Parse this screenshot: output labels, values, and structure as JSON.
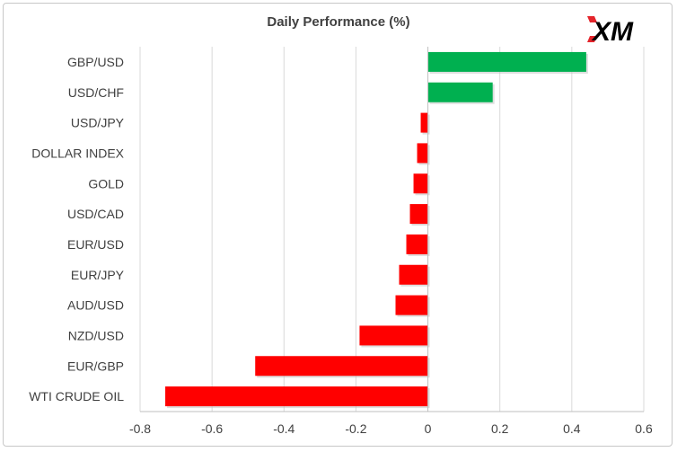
{
  "chart_data": {
    "type": "bar",
    "orientation": "horizontal",
    "title": "Daily Performance (%)",
    "xlabel": "",
    "ylabel": "",
    "categories": [
      "GBP/USD",
      "USD/CHF",
      "USD/JPY",
      "DOLLAR INDEX",
      "GOLD",
      "USD/CAD",
      "EUR/USD",
      "EUR/JPY",
      "AUD/USD",
      "NZD/USD",
      "EUR/GBP",
      "WTI CRUDE OIL"
    ],
    "values": [
      0.44,
      0.18,
      -0.02,
      -0.03,
      -0.04,
      -0.05,
      -0.06,
      -0.08,
      -0.09,
      -0.19,
      -0.48,
      -0.73
    ],
    "xlim": [
      -0.8,
      0.6
    ],
    "xticks": [
      -0.8,
      -0.6,
      -0.4,
      -0.2,
      0,
      0.2,
      0.4,
      0.6
    ],
    "xtick_labels": [
      "-0.8",
      "-0.6",
      "-0.4",
      "-0.2",
      "0",
      "0.2",
      "0.4",
      "0.6"
    ],
    "grid": "vertical",
    "legend": "none",
    "colors": {
      "positive": "#00b050",
      "negative": "#ff0000",
      "grid": "#d9d9d9",
      "axis": "#bfbfbf",
      "text": "#404040"
    }
  },
  "logo": {
    "text": "XM",
    "color": "#000000",
    "accent": "#e4242b"
  }
}
